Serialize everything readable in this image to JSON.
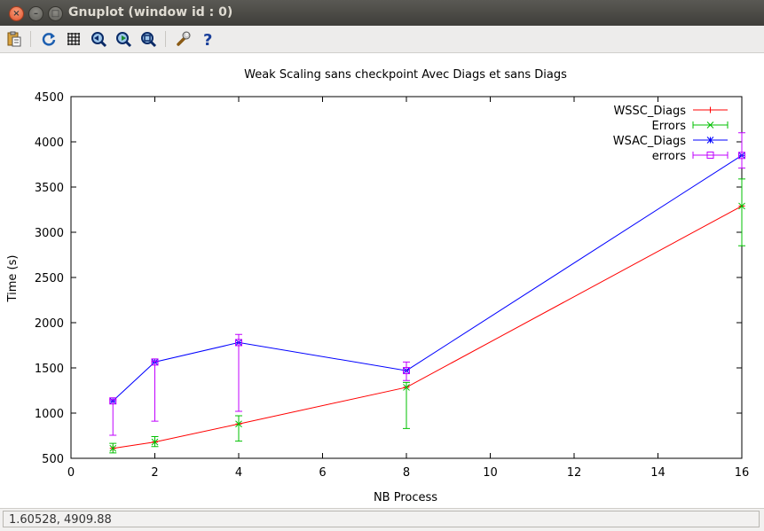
{
  "window": {
    "title": "Gnuplot (window id : 0)"
  },
  "toolbar": {
    "buttons": [
      {
        "name": "copy-clipboard-icon"
      },
      {
        "name": "replot-icon"
      },
      {
        "name": "grid-icon"
      },
      {
        "name": "zoom-previous-icon"
      },
      {
        "name": "zoom-next-icon"
      },
      {
        "name": "autoscale-icon"
      },
      {
        "name": "settings-icon"
      },
      {
        "name": "help-icon"
      }
    ]
  },
  "status": {
    "coords": "1.60528,  4909.88"
  },
  "chart_data": {
    "type": "line",
    "title": "Weak Scaling sans checkpoint Avec Diags et sans Diags",
    "xlabel": "NB Process",
    "ylabel": "Time (s)",
    "xlim": [
      0,
      16
    ],
    "ylim": [
      500,
      4500
    ],
    "xticks": [
      "0",
      "2",
      "4",
      "6",
      "8",
      "10",
      "12",
      "14",
      "16"
    ],
    "yticks": [
      "500",
      "1000",
      "1500",
      "2000",
      "2500",
      "3000",
      "3500",
      "4000",
      "4500"
    ],
    "grid": false,
    "legend": "top-right",
    "series": [
      {
        "name": "WSSC_Diags",
        "color": "#ff0000",
        "kind": "line",
        "marker": "plus",
        "x": [
          1,
          2,
          4,
          8,
          16
        ],
        "y": [
          610,
          680,
          880,
          1285,
          3290
        ]
      },
      {
        "name": "Errors",
        "color": "#00c000",
        "kind": "errorbar",
        "marker": "cross",
        "x": [
          1,
          2,
          4,
          8,
          16
        ],
        "y": [
          610,
          680,
          880,
          1285,
          3290
        ],
        "ylow": [
          560,
          630,
          690,
          830,
          2850
        ],
        "yhigh": [
          665,
          740,
          970,
          1340,
          3590
        ]
      },
      {
        "name": "WSAC_Diags",
        "color": "#0000ff",
        "kind": "line",
        "marker": "star",
        "x": [
          1,
          2,
          4,
          8,
          16
        ],
        "y": [
          1135,
          1565,
          1780,
          1470,
          3850
        ]
      },
      {
        "name": "errors",
        "color": "#c000ff",
        "kind": "errorbar",
        "marker": "square",
        "x": [
          1,
          2,
          4,
          8,
          16
        ],
        "y": [
          1135,
          1565,
          1780,
          1470,
          3850
        ],
        "ylow": [
          755,
          910,
          1020,
          1360,
          3710
        ],
        "yhigh": [
          1150,
          1575,
          1870,
          1565,
          4100
        ]
      }
    ]
  }
}
